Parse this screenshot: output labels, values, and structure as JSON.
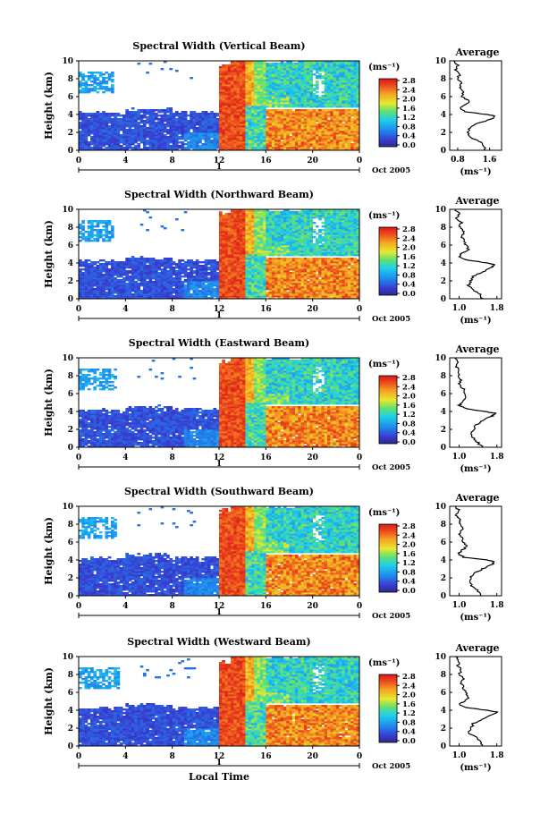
{
  "chart_data": [
    {
      "type": "heatmap",
      "title": "Spectral Width (Vertical Beam)",
      "ylabel": "Height (km)",
      "unit": "(ms⁻¹)",
      "x_ticks": [
        "0",
        "4",
        "8",
        "12",
        "16",
        "20",
        "0"
      ],
      "y_ticks": [
        "0",
        "2",
        "4",
        "6",
        "8",
        "10"
      ],
      "xlim": [
        0,
        24
      ],
      "ylim": [
        0,
        10
      ],
      "date_label": "Oct 2005",
      "day_marker": "1",
      "colorbar": {
        "ticks": [
          "2.8",
          "2.4",
          "2.0",
          "1.6",
          "1.2",
          "0.8",
          "0.4",
          "0.0"
        ],
        "range": [
          0,
          2.8
        ]
      },
      "average_profile": {
        "title": "Average",
        "unit": "(ms⁻¹)",
        "x_ticks": [
          "0.8",
          "1.6"
        ],
        "y_ticks": [
          "0",
          "2",
          "4",
          "6",
          "8",
          "10"
        ],
        "xlim": [
          0.6,
          1.9
        ],
        "height": [
          0,
          0.5,
          1,
          1.5,
          2,
          2.5,
          3,
          3.5,
          3.8,
          4,
          4.3,
          4.7,
          5,
          5.5,
          6,
          6.5,
          7,
          7.5,
          8,
          8.5,
          9,
          9.5,
          10
        ],
        "values": [
          1.5,
          1.45,
          1.35,
          1.1,
          1.05,
          1.1,
          1.3,
          1.65,
          1.75,
          1.55,
          1.0,
          0.85,
          0.95,
          1.1,
          0.9,
          0.95,
          0.85,
          0.9,
          0.8,
          0.85,
          0.75,
          0.8,
          0.7
        ]
      }
    },
    {
      "type": "heatmap",
      "title": "Spectral Width (Northward Beam)",
      "ylabel": "Height (km)",
      "unit": "(ms⁻¹)",
      "x_ticks": [
        "0",
        "4",
        "8",
        "12",
        "16",
        "20",
        "0"
      ],
      "y_ticks": [
        "0",
        "2",
        "4",
        "6",
        "8",
        "10"
      ],
      "xlim": [
        0,
        24
      ],
      "ylim": [
        0,
        10
      ],
      "date_label": "Oct 2005",
      "day_marker": "1",
      "colorbar": {
        "ticks": [
          "2.8",
          "2.4",
          "2.0",
          "1.6",
          "1.2",
          "0.8",
          "0.4",
          "0.0"
        ],
        "range": [
          0,
          2.8
        ]
      },
      "average_profile": {
        "title": "Average",
        "unit": "(ms⁻¹)",
        "x_ticks": [
          "1.0",
          "1.8"
        ],
        "y_ticks": [
          "0",
          "2",
          "4",
          "6",
          "8",
          "10"
        ],
        "xlim": [
          0.8,
          1.9
        ],
        "height": [
          0,
          0.5,
          1,
          1.5,
          2,
          2.5,
          3,
          3.5,
          3.8,
          4,
          4.3,
          4.7,
          5,
          5.5,
          6,
          6.5,
          7,
          7.5,
          8,
          8.5,
          9,
          9.5,
          10
        ],
        "values": [
          1.5,
          1.45,
          1.3,
          1.2,
          1.25,
          1.3,
          1.5,
          1.7,
          1.75,
          1.6,
          1.2,
          1.0,
          1.05,
          1.2,
          1.15,
          1.1,
          1.05,
          1.1,
          1.0,
          1.05,
          0.95,
          1.0,
          0.92
        ]
      }
    },
    {
      "type": "heatmap",
      "title": "Spectral Width (Eastward Beam)",
      "ylabel": "Height (km)",
      "unit": "(ms⁻¹)",
      "x_ticks": [
        "0",
        "4",
        "8",
        "12",
        "16",
        "20",
        "0"
      ],
      "y_ticks": [
        "0",
        "2",
        "4",
        "6",
        "8",
        "10"
      ],
      "xlim": [
        0,
        24
      ],
      "ylim": [
        0,
        10
      ],
      "date_label": "Oct 2005",
      "day_marker": "1",
      "colorbar": {
        "ticks": [
          "2.8",
          "2.4",
          "2.0",
          "1.6",
          "1.2",
          "0.8",
          "0.4",
          "0.0"
        ],
        "range": [
          0,
          2.8
        ]
      },
      "average_profile": {
        "title": "Average",
        "unit": "(ms⁻¹)",
        "x_ticks": [
          "1.0",
          "1.8"
        ],
        "y_ticks": [
          "0",
          "2",
          "4",
          "6",
          "8",
          "10"
        ],
        "xlim": [
          0.8,
          1.9
        ],
        "height": [
          0,
          0.5,
          1,
          1.5,
          2,
          2.5,
          3,
          3.5,
          3.8,
          4,
          4.3,
          4.7,
          5,
          5.5,
          6,
          6.5,
          7,
          7.5,
          8,
          8.5,
          9,
          9.5,
          10
        ],
        "values": [
          1.5,
          1.4,
          1.3,
          1.25,
          1.3,
          1.35,
          1.5,
          1.7,
          1.75,
          1.55,
          1.15,
          1.0,
          1.05,
          1.15,
          1.1,
          1.1,
          1.0,
          1.05,
          0.98,
          1.0,
          0.95,
          0.98,
          0.9
        ]
      }
    },
    {
      "type": "heatmap",
      "title": "Spectral Width (Southward Beam)",
      "ylabel": "Height (km)",
      "unit": "(ms⁻¹)",
      "x_ticks": [
        "0",
        "4",
        "8",
        "12",
        "16",
        "20",
        "0"
      ],
      "y_ticks": [
        "0",
        "2",
        "4",
        "6",
        "8",
        "10"
      ],
      "xlim": [
        0,
        24
      ],
      "ylim": [
        0,
        10
      ],
      "date_label": "Oct 2005",
      "day_marker": "1",
      "colorbar": {
        "ticks": [
          "2.8",
          "2.4",
          "2.0",
          "1.6",
          "1.2",
          "0.8",
          "0.4",
          "0.0"
        ],
        "range": [
          0,
          2.8
        ]
      },
      "average_profile": {
        "title": "Average",
        "unit": "(ms⁻¹)",
        "x_ticks": [
          "1.0",
          "1.8"
        ],
        "y_ticks": [
          "0",
          "2",
          "4",
          "6",
          "8",
          "10"
        ],
        "xlim": [
          0.8,
          1.9
        ],
        "height": [
          0,
          0.5,
          1,
          1.5,
          2,
          2.5,
          3,
          3.5,
          3.8,
          4,
          4.3,
          4.7,
          5,
          5.5,
          6,
          6.5,
          7,
          7.5,
          8,
          8.5,
          9,
          9.5,
          10
        ],
        "values": [
          1.45,
          1.4,
          1.3,
          1.2,
          1.25,
          1.3,
          1.5,
          1.7,
          1.75,
          1.6,
          1.1,
          0.98,
          1.05,
          1.15,
          1.1,
          1.05,
          1.0,
          1.08,
          1.0,
          1.02,
          0.95,
          1.0,
          0.92
        ]
      }
    },
    {
      "type": "heatmap",
      "title": "Spectral Width (Westward Beam)",
      "ylabel": "Height (km)",
      "unit": "(ms⁻¹)",
      "x_ticks": [
        "0",
        "4",
        "8",
        "12",
        "16",
        "20",
        "0"
      ],
      "y_ticks": [
        "0",
        "2",
        "4",
        "6",
        "8",
        "10"
      ],
      "xlim": [
        0,
        24
      ],
      "ylim": [
        0,
        10
      ],
      "date_label": "Oct 2005",
      "day_marker": "1",
      "xlabel": "Local Time",
      "colorbar": {
        "ticks": [
          "2.8",
          "2.4",
          "2.0",
          "1.6",
          "1.2",
          "0.8",
          "0.4",
          "0.0"
        ],
        "range": [
          0,
          2.8
        ]
      },
      "average_profile": {
        "title": "Average",
        "unit": "(ms⁻¹)",
        "x_ticks": [
          "1.0",
          "1.8"
        ],
        "y_ticks": [
          "0",
          "2",
          "4",
          "6",
          "8",
          "10"
        ],
        "xlim": [
          0.8,
          1.9
        ],
        "height": [
          0,
          0.5,
          1,
          1.5,
          2,
          2.5,
          3,
          3.5,
          3.8,
          4,
          4.3,
          4.7,
          5,
          5.5,
          6,
          6.5,
          7,
          7.5,
          8,
          8.5,
          9,
          9.5,
          10
        ],
        "values": [
          1.5,
          1.45,
          1.35,
          1.2,
          1.25,
          1.3,
          1.5,
          1.7,
          1.8,
          1.6,
          1.15,
          1.0,
          1.1,
          1.2,
          1.15,
          1.1,
          1.05,
          1.1,
          1.0,
          1.05,
          0.98,
          1.0,
          0.92
        ]
      }
    }
  ],
  "colors": {
    "background": "#ffffff",
    "low_blue": "#3344cc",
    "high_red": "#e8281e",
    "axis": "#000000"
  }
}
